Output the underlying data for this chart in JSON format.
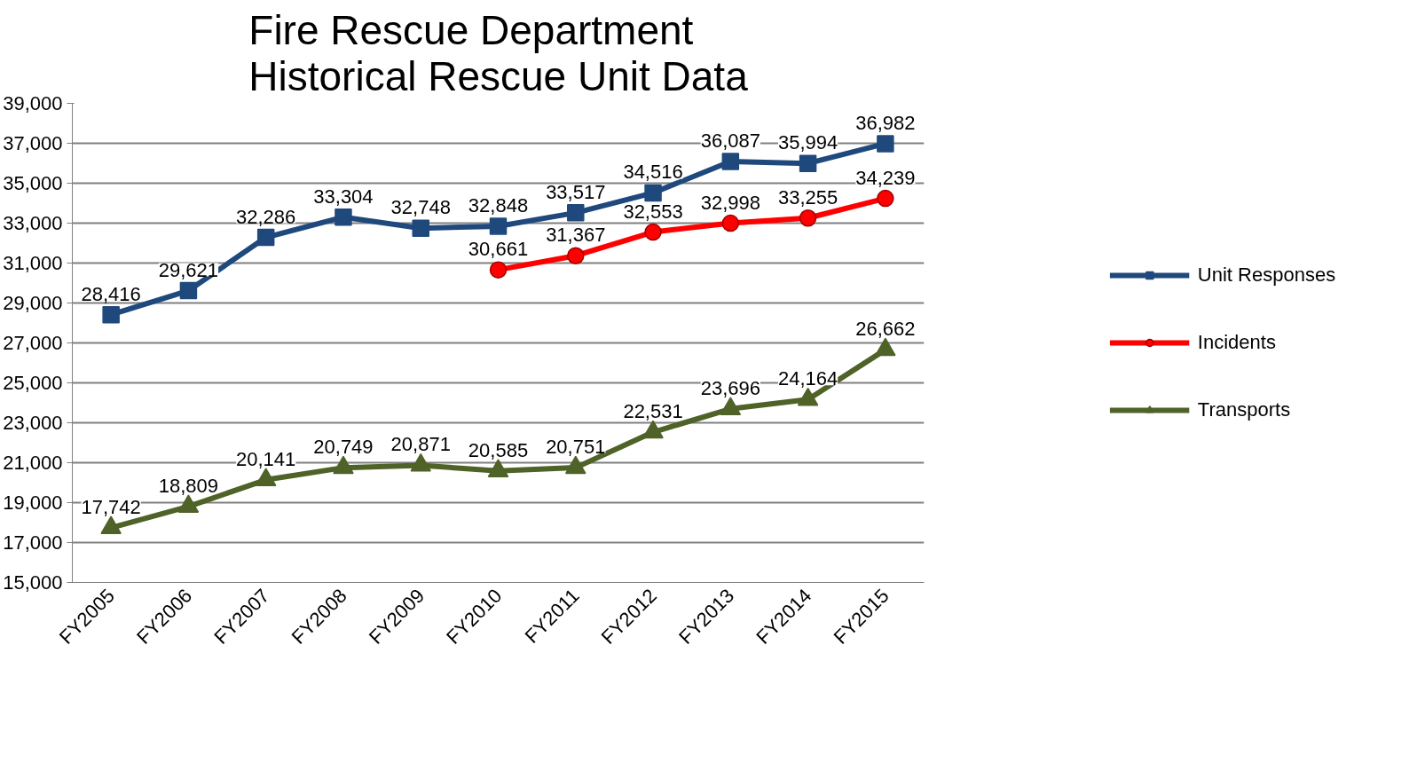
{
  "chart_data": {
    "type": "line",
    "title": "Fire Rescue Department\nHistorical Rescue Unit Data",
    "categories": [
      "FY2005",
      "FY2006",
      "FY2007",
      "FY2008",
      "FY2009",
      "FY2010",
      "FY2011",
      "FY2012",
      "FY2013",
      "FY2014",
      "FY2015"
    ],
    "series": [
      {
        "name": "Unit Responses",
        "color": "#1f497d",
        "marker": "square",
        "values": [
          28416,
          29621,
          32286,
          33304,
          32748,
          32848,
          33517,
          34516,
          36087,
          35994,
          36982
        ],
        "value_labels": [
          "28,416",
          "29,621",
          "32,286",
          "33,304",
          "32,748",
          "32,848",
          "33,517",
          "34,516",
          "36,087",
          "35,994",
          "36,982"
        ]
      },
      {
        "name": "Incidents",
        "color": "#ff0000",
        "marker": "circle",
        "values": [
          null,
          null,
          null,
          null,
          null,
          30661,
          31367,
          32553,
          32998,
          33255,
          34239
        ],
        "value_labels": [
          null,
          null,
          null,
          null,
          null,
          "30,661",
          "31,367",
          "32,553",
          "32,998",
          "33,255",
          "34,239"
        ]
      },
      {
        "name": "Transports",
        "color": "#4f6228",
        "marker": "triangle",
        "values": [
          17742,
          18809,
          20141,
          20749,
          20871,
          20585,
          20751,
          22531,
          23696,
          24164,
          26662
        ],
        "value_labels": [
          "17,742",
          "18,809",
          "20,141",
          "20,749",
          "20,871",
          "20,585",
          "20,751",
          "22,531",
          "23,696",
          "24,164",
          "26,662"
        ]
      }
    ],
    "ylim": [
      15000,
      39000
    ],
    "yticks": [
      {
        "value": 15000,
        "label": "15,000"
      },
      {
        "value": 17000,
        "label": "17,000"
      },
      {
        "value": 19000,
        "label": "19,000"
      },
      {
        "value": 21000,
        "label": "21,000"
      },
      {
        "value": 23000,
        "label": "23,000"
      },
      {
        "value": 25000,
        "label": "25,000"
      },
      {
        "value": 27000,
        "label": "27,000"
      },
      {
        "value": 29000,
        "label": "29,000"
      },
      {
        "value": 31000,
        "label": "31,000"
      },
      {
        "value": 33000,
        "label": "33,000"
      },
      {
        "value": 35000,
        "label": "35,000"
      },
      {
        "value": 37000,
        "label": "37,000"
      },
      {
        "value": 39000,
        "label": "39,000"
      }
    ],
    "grid": "y",
    "legend": "right",
    "line_style": "solid"
  }
}
